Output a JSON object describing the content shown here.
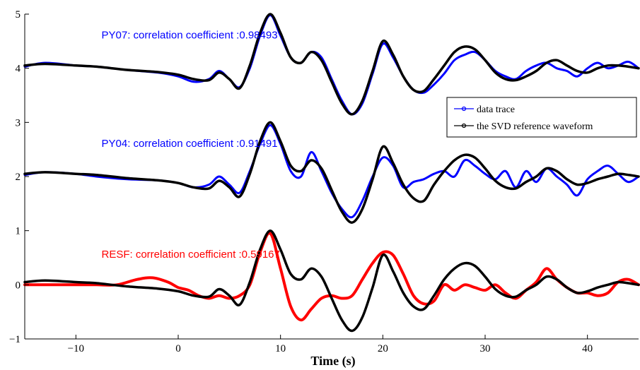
{
  "chart_data": {
    "type": "line",
    "title": "",
    "xlabel": "Time (s)",
    "ylabel": "",
    "xlim": [
      -15,
      45
    ],
    "ylim": [
      -1,
      5
    ],
    "xticks": [
      -10,
      0,
      10,
      20,
      30,
      40
    ],
    "yticks": [
      -1,
      0,
      1,
      2,
      3,
      4,
      5
    ],
    "xtick_labels": [
      "−10",
      "0",
      "10",
      "20",
      "30",
      "40"
    ],
    "ytick_labels": [
      "−1",
      "0",
      "1",
      "2",
      "3",
      "4",
      "5"
    ],
    "legend": {
      "position": "right",
      "entries": [
        {
          "label": "data trace",
          "color": "#0000ff",
          "marker": "circle"
        },
        {
          "label": "the SVD reference waveform",
          "color": "#000000",
          "marker": "circle"
        }
      ]
    },
    "annotations": [
      {
        "text": "PY07: correlation coefficient :0.98493",
        "x": -7.5,
        "y": 4.55,
        "color": "#0000ff"
      },
      {
        "text": "PY04: correlation coefficient :0.91491",
        "x": -7.5,
        "y": 2.55,
        "color": "#0000ff"
      },
      {
        "text": "RESF: correlation coefficient :0.59167",
        "x": -7.5,
        "y": 0.5,
        "color": "#ff0000"
      }
    ],
    "series": [
      {
        "name": "PY07 data trace",
        "color": "#0000ff",
        "width": 3,
        "x": [
          -15,
          -13,
          -10,
          -8,
          -5,
          -2,
          0,
          1.5,
          3,
          4,
          5,
          6,
          7,
          8,
          9,
          10,
          11,
          12,
          13,
          14,
          15,
          16,
          17,
          18,
          19,
          20,
          21,
          22,
          23,
          24,
          25,
          26,
          27,
          28,
          29,
          30,
          31,
          32,
          33,
          34,
          35,
          36,
          37,
          38,
          39,
          40,
          41,
          42,
          43,
          44,
          45
        ],
        "y": [
          4.03,
          4.1,
          4.05,
          4.03,
          3.97,
          3.92,
          3.85,
          3.75,
          3.8,
          3.95,
          3.8,
          3.65,
          4.0,
          4.6,
          4.98,
          4.6,
          4.2,
          4.1,
          4.3,
          4.2,
          3.8,
          3.4,
          3.15,
          3.35,
          3.9,
          4.45,
          4.2,
          3.85,
          3.6,
          3.55,
          3.7,
          3.9,
          4.15,
          4.25,
          4.3,
          4.15,
          3.95,
          3.85,
          3.8,
          3.95,
          4.05,
          4.1,
          4.0,
          3.95,
          3.85,
          4.0,
          4.1,
          4.0,
          4.05,
          4.12,
          4.0
        ]
      },
      {
        "name": "PY07 SVD reference",
        "color": "#000000",
        "width": 3.5,
        "x": [
          -15,
          -13,
          -10,
          -8,
          -5,
          -2,
          0,
          1.5,
          3,
          4,
          5,
          6,
          7,
          8,
          9,
          10,
          11,
          12,
          13,
          14,
          15,
          16,
          17,
          18,
          19,
          20,
          21,
          22,
          23,
          24,
          25,
          26,
          27,
          28,
          29,
          30,
          31,
          32,
          33,
          34,
          35,
          36,
          37,
          38,
          39,
          40,
          41,
          42,
          43,
          44,
          45
        ],
        "y": [
          4.05,
          4.08,
          4.05,
          4.03,
          3.97,
          3.93,
          3.88,
          3.8,
          3.78,
          3.92,
          3.8,
          3.63,
          4.05,
          4.65,
          5.0,
          4.65,
          4.2,
          4.1,
          4.3,
          4.15,
          3.75,
          3.35,
          3.15,
          3.4,
          3.95,
          4.5,
          4.25,
          3.85,
          3.6,
          3.58,
          3.8,
          4.05,
          4.3,
          4.4,
          4.35,
          4.15,
          3.92,
          3.8,
          3.78,
          3.85,
          3.95,
          4.1,
          4.15,
          4.05,
          3.95,
          3.92,
          4.0,
          4.05,
          4.05,
          4.03,
          4.0
        ]
      },
      {
        "name": "PY04 data trace",
        "color": "#0000ff",
        "width": 3,
        "x": [
          -15,
          -13,
          -10,
          -8,
          -5,
          -2,
          0,
          1.5,
          3,
          4,
          5,
          6,
          7,
          8,
          9,
          10,
          11,
          12,
          13,
          14,
          15,
          16,
          17,
          18,
          19,
          20,
          21,
          22,
          23,
          24,
          25,
          26,
          27,
          28,
          29,
          30,
          31,
          32,
          33,
          34,
          35,
          36,
          37,
          38,
          39,
          40,
          41,
          42,
          43,
          44,
          45
        ],
        "y": [
          2.03,
          2.08,
          2.05,
          2.0,
          1.95,
          1.93,
          1.88,
          1.8,
          1.85,
          2.0,
          1.85,
          1.7,
          2.1,
          2.6,
          2.95,
          2.6,
          2.1,
          2.0,
          2.45,
          2.1,
          1.7,
          1.4,
          1.25,
          1.55,
          2.0,
          2.35,
          2.2,
          1.8,
          1.9,
          1.95,
          2.05,
          2.1,
          2.0,
          2.3,
          2.2,
          2.05,
          1.95,
          2.1,
          1.8,
          2.1,
          1.9,
          2.15,
          2.0,
          1.85,
          1.65,
          1.95,
          2.1,
          2.2,
          2.05,
          1.9,
          2.0
        ]
      },
      {
        "name": "PY04 SVD reference",
        "color": "#000000",
        "width": 3.5,
        "x": [
          -15,
          -13,
          -10,
          -8,
          -5,
          -2,
          0,
          1.5,
          3,
          4,
          5,
          6,
          7,
          8,
          9,
          10,
          11,
          12,
          13,
          14,
          15,
          16,
          17,
          18,
          19,
          20,
          21,
          22,
          23,
          24,
          25,
          26,
          27,
          28,
          29,
          30,
          31,
          32,
          33,
          34,
          35,
          36,
          37,
          38,
          39,
          40,
          41,
          42,
          43,
          44,
          45
        ],
        "y": [
          2.05,
          2.08,
          2.05,
          2.03,
          1.97,
          1.93,
          1.88,
          1.8,
          1.78,
          1.92,
          1.8,
          1.63,
          2.05,
          2.65,
          3.0,
          2.65,
          2.2,
          2.1,
          2.3,
          2.15,
          1.75,
          1.35,
          1.15,
          1.4,
          1.95,
          2.55,
          2.25,
          1.85,
          1.6,
          1.55,
          1.85,
          2.1,
          2.3,
          2.4,
          2.35,
          2.15,
          1.92,
          1.8,
          1.78,
          1.9,
          2.0,
          2.15,
          2.1,
          1.95,
          1.85,
          1.88,
          1.95,
          2.0,
          2.05,
          2.03,
          2.0
        ]
      },
      {
        "name": "RESF data trace",
        "color": "#ff0000",
        "width": 4,
        "x": [
          -15,
          -13,
          -10,
          -8,
          -6,
          -4,
          -2.5,
          -1,
          0,
          1,
          2,
          3,
          4,
          5,
          6,
          7,
          8,
          9,
          10,
          11,
          12,
          13,
          14,
          15,
          16,
          17,
          18,
          19,
          20,
          21,
          22,
          23,
          24,
          25,
          26,
          27,
          28,
          29,
          30,
          31,
          32,
          33,
          34,
          35,
          36,
          37,
          38,
          39,
          40,
          41,
          42,
          43,
          44,
          45
        ],
        "y": [
          0.0,
          0.0,
          0.0,
          0.0,
          0.0,
          0.1,
          0.13,
          0.05,
          -0.05,
          -0.1,
          -0.2,
          -0.25,
          -0.2,
          -0.25,
          -0.2,
          0.0,
          0.6,
          0.95,
          0.3,
          -0.4,
          -0.65,
          -0.45,
          -0.25,
          -0.2,
          -0.25,
          -0.2,
          0.1,
          0.4,
          0.6,
          0.55,
          0.2,
          -0.2,
          -0.35,
          -0.3,
          0.0,
          -0.1,
          0.0,
          -0.05,
          -0.1,
          0.0,
          -0.15,
          -0.25,
          -0.1,
          0.05,
          0.3,
          0.1,
          -0.05,
          -0.15,
          -0.15,
          -0.2,
          -0.15,
          0.05,
          0.1,
          0.0
        ]
      },
      {
        "name": "RESF SVD reference",
        "color": "#000000",
        "width": 3.5,
        "x": [
          -15,
          -13,
          -10,
          -8,
          -5,
          -2,
          0,
          1.5,
          3,
          4,
          5,
          6,
          7,
          8,
          9,
          10,
          11,
          12,
          13,
          14,
          15,
          16,
          17,
          18,
          19,
          20,
          21,
          22,
          23,
          24,
          25,
          26,
          27,
          28,
          29,
          30,
          31,
          32,
          33,
          34,
          35,
          36,
          37,
          38,
          39,
          40,
          41,
          42,
          43,
          44,
          45
        ],
        "y": [
          0.05,
          0.08,
          0.05,
          0.03,
          -0.03,
          -0.07,
          -0.12,
          -0.2,
          -0.22,
          -0.08,
          -0.2,
          -0.37,
          0.05,
          0.65,
          1.0,
          0.65,
          0.2,
          0.1,
          0.3,
          0.15,
          -0.25,
          -0.65,
          -0.85,
          -0.6,
          -0.05,
          0.55,
          0.25,
          -0.15,
          -0.4,
          -0.45,
          -0.2,
          0.1,
          0.3,
          0.4,
          0.35,
          0.15,
          -0.08,
          -0.2,
          -0.22,
          -0.1,
          0.0,
          0.15,
          0.1,
          -0.05,
          -0.15,
          -0.12,
          -0.05,
          0.0,
          0.05,
          0.03,
          0.0
        ]
      }
    ]
  }
}
